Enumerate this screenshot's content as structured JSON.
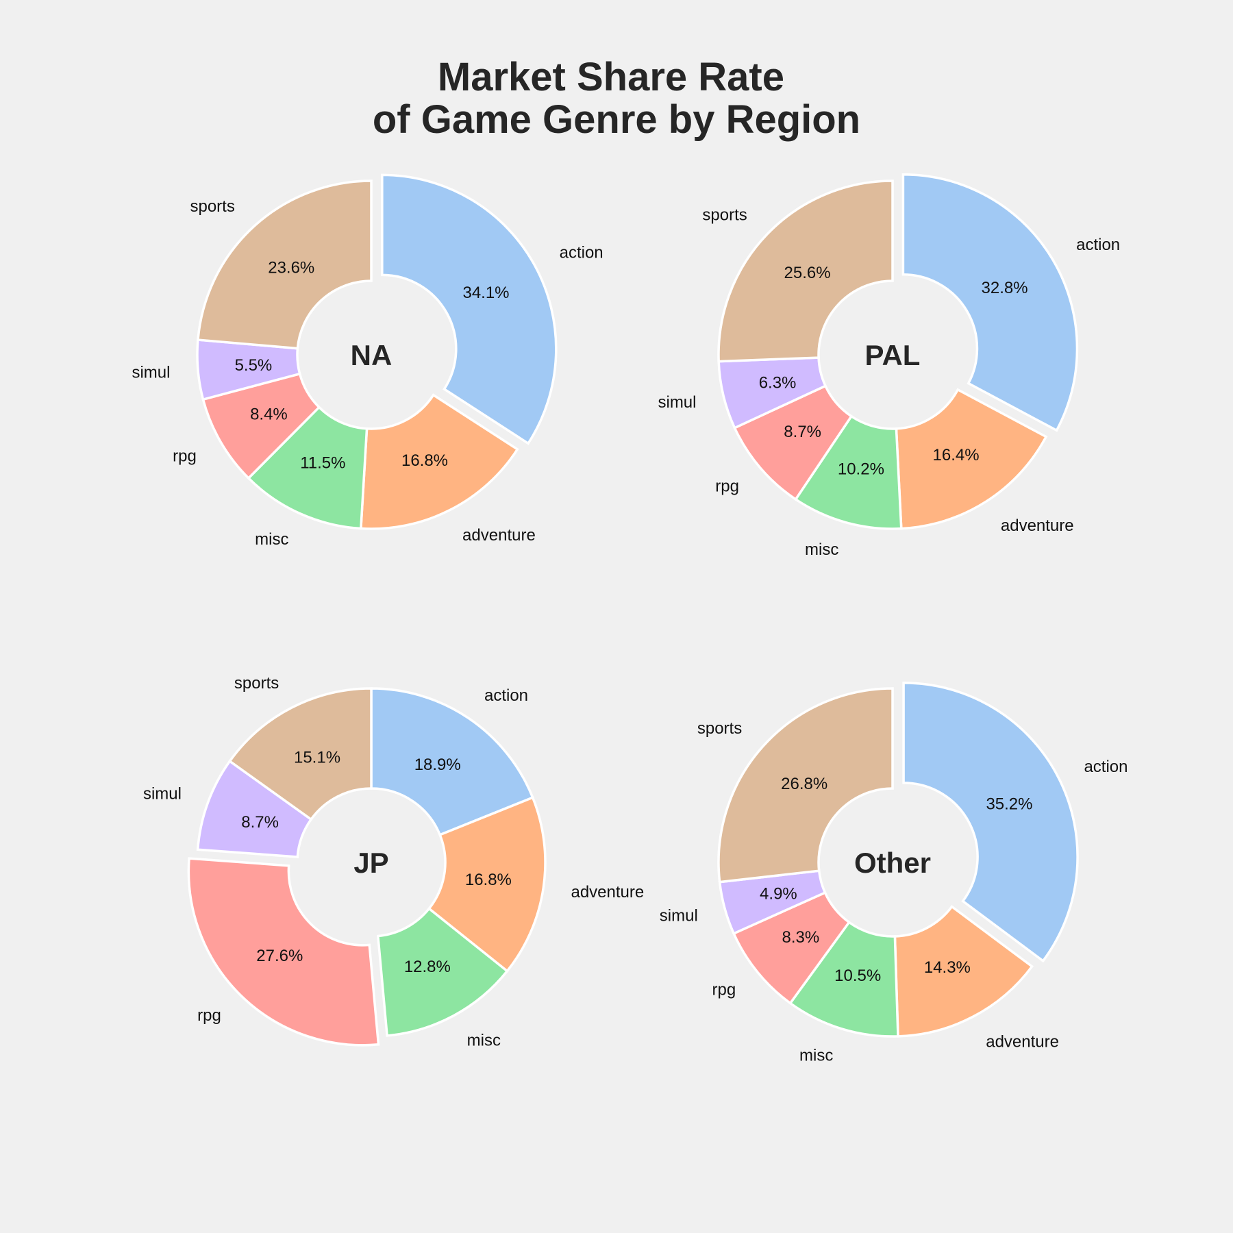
{
  "title_lines": [
    "Market Share Rate",
    "of Game Genre by Region"
  ],
  "colors": {
    "action": "#a1c9f4",
    "adventure": "#ffb482",
    "misc": "#8de5a1",
    "rpg": "#ff9f9b",
    "simul": "#d0bbff",
    "sports": "#debb9b"
  },
  "chart_data": [
    {
      "type": "pie",
      "region": "NA",
      "categories": [
        "action",
        "adventure",
        "misc",
        "rpg",
        "simul",
        "sports"
      ],
      "values": [
        34.1,
        16.8,
        11.5,
        8.4,
        5.5,
        23.6
      ],
      "labels": [
        "34.1%",
        "16.8%",
        "11.5%",
        "8.4%",
        "5.5%",
        "23.6%"
      ],
      "exploded": "action",
      "donut": true
    },
    {
      "type": "pie",
      "region": "PAL",
      "categories": [
        "action",
        "adventure",
        "misc",
        "rpg",
        "simul",
        "sports"
      ],
      "values": [
        32.8,
        16.4,
        10.2,
        8.7,
        6.3,
        25.6
      ],
      "labels": [
        "32.8%",
        "16.4%",
        "10.2%",
        "8.7%",
        "6.3%",
        "25.6%"
      ],
      "exploded": "action",
      "donut": true
    },
    {
      "type": "pie",
      "region": "JP",
      "categories": [
        "action",
        "adventure",
        "misc",
        "rpg",
        "simul",
        "sports"
      ],
      "values": [
        18.9,
        16.8,
        12.8,
        27.6,
        8.7,
        15.1
      ],
      "labels": [
        "18.9%",
        "16.8%",
        "12.8%",
        "27.6%",
        "8.7%",
        "15.1%"
      ],
      "exploded": "rpg",
      "donut": true
    },
    {
      "type": "pie",
      "region": "Other",
      "categories": [
        "action",
        "adventure",
        "misc",
        "rpg",
        "simul",
        "sports"
      ],
      "values": [
        35.2,
        14.3,
        10.5,
        8.3,
        4.9,
        26.8
      ],
      "labels": [
        "35.2%",
        "14.3%",
        "10.5%",
        "8.3%",
        "4.9%",
        "26.8%"
      ],
      "exploded": "action",
      "donut": true
    }
  ]
}
